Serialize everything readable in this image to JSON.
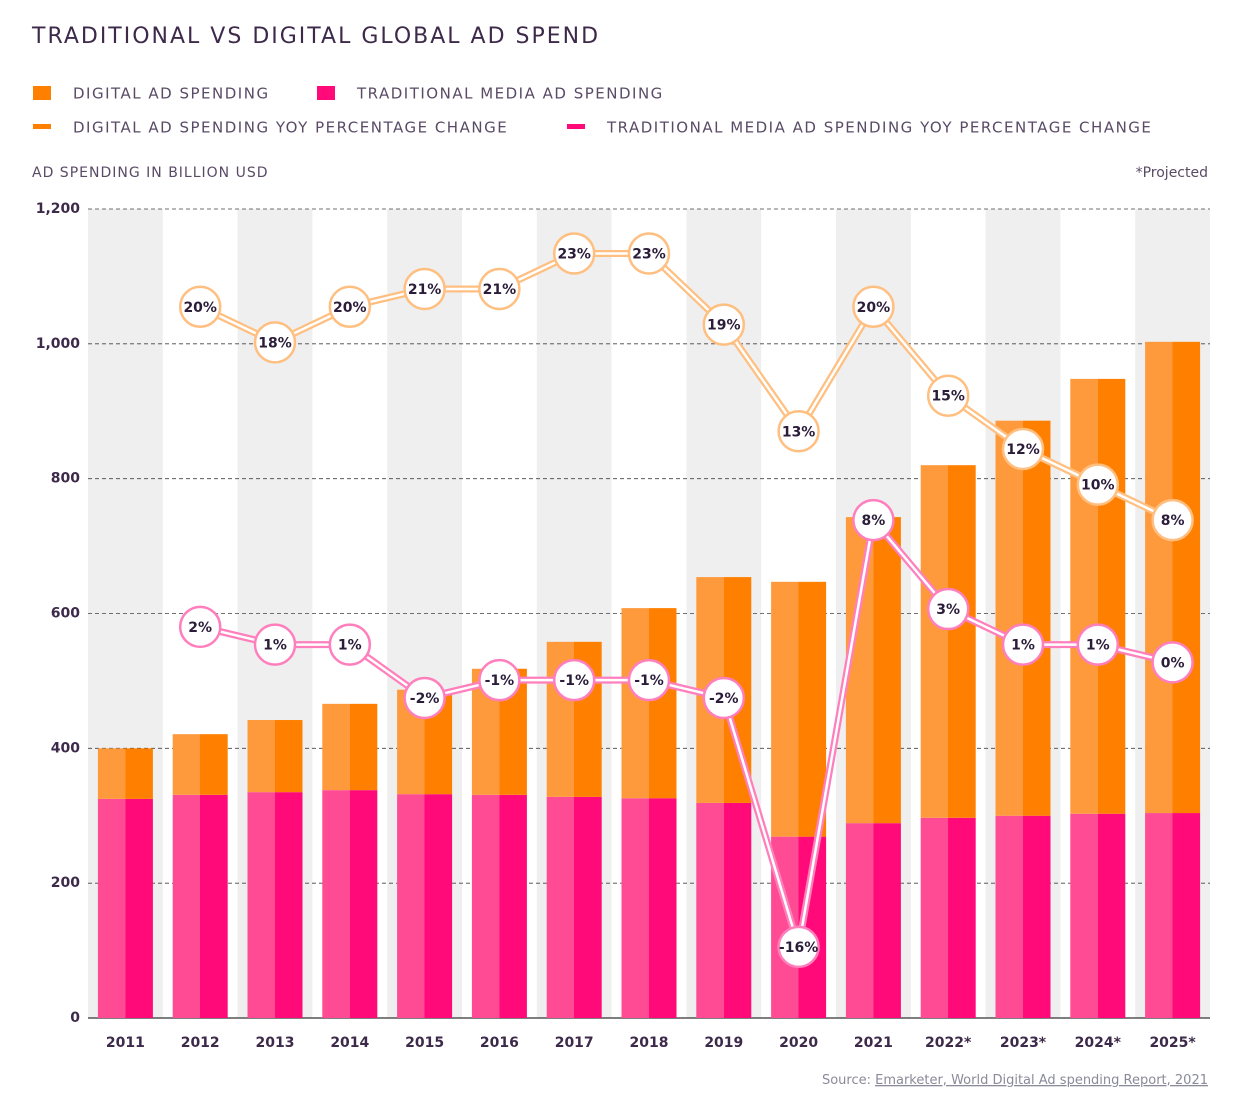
{
  "chart_data": {
    "type": "bar",
    "title": "TRADITIONAL VS DIGITAL GLOBAL AD SPEND",
    "y_label": "AD SPENDING IN BILLION USD",
    "note": "*Projected",
    "source": "Source:",
    "source_link": "Emarketer, World Digital Ad spending Report, 2021",
    "categories": [
      "2011",
      "2012",
      "2013",
      "2014",
      "2015",
      "2016",
      "2017",
      "2018",
      "2019",
      "2020",
      "2021",
      "2022*",
      "2023*",
      "2024*",
      "2025*"
    ],
    "stacked": true,
    "grid": true,
    "ylim": [
      0,
      1200
    ],
    "yticks": [
      0,
      200,
      400,
      600,
      800,
      {
        "value": 1000,
        "label": "1,000"
      },
      {
        "value": 1200,
        "label": "1,200"
      }
    ],
    "y2lim": [
      -20,
      25.5
    ],
    "series": [
      {
        "name": "DIGITAL AD SPENDING",
        "type": "bar",
        "color": "#ff8000",
        "values": [
          75,
          90,
          107,
          128,
          155,
          187,
          230,
          282,
          335,
          378,
          454,
          523,
          586,
          645,
          699
        ]
      },
      {
        "name": "TRADITIONAL MEDIA AD SPENDING",
        "type": "bar",
        "color": "#ff0a78",
        "values": [
          325,
          331,
          335,
          338,
          332,
          331,
          328,
          326,
          319,
          269,
          289,
          297,
          300,
          303,
          304
        ]
      },
      {
        "name": "DIGITAL AD SPENDING YOY PERCENTAGE CHANGE",
        "type": "line",
        "axis": "y2",
        "color": "#ffbf80",
        "values": [
          null,
          20,
          18,
          20,
          21,
          21,
          23,
          23,
          19,
          13,
          20,
          15,
          12,
          10,
          8
        ],
        "value_labels": [
          null,
          "20%",
          "18%",
          "20%",
          "21%",
          "21%",
          "23%",
          "23%",
          "19%",
          "13%",
          "20%",
          "15%",
          "12%",
          "10%",
          "8%"
        ]
      },
      {
        "name": "TRADITIONAL MEDIA AD SPENDING YOY PERCENTAGE CHANGE",
        "type": "line",
        "axis": "y2",
        "color": "#ff7fbd",
        "values": [
          null,
          2,
          1,
          1,
          -2,
          -1,
          -1,
          -1,
          -2,
          -16,
          8,
          3,
          1,
          1,
          0
        ],
        "value_labels": [
          null,
          "2%",
          "1%",
          "1%",
          "-2%",
          "-1%",
          "-1%",
          "-1%",
          "-2%",
          "-16%",
          "8%",
          "3%",
          "1%",
          "1%",
          "0%"
        ]
      }
    ]
  }
}
